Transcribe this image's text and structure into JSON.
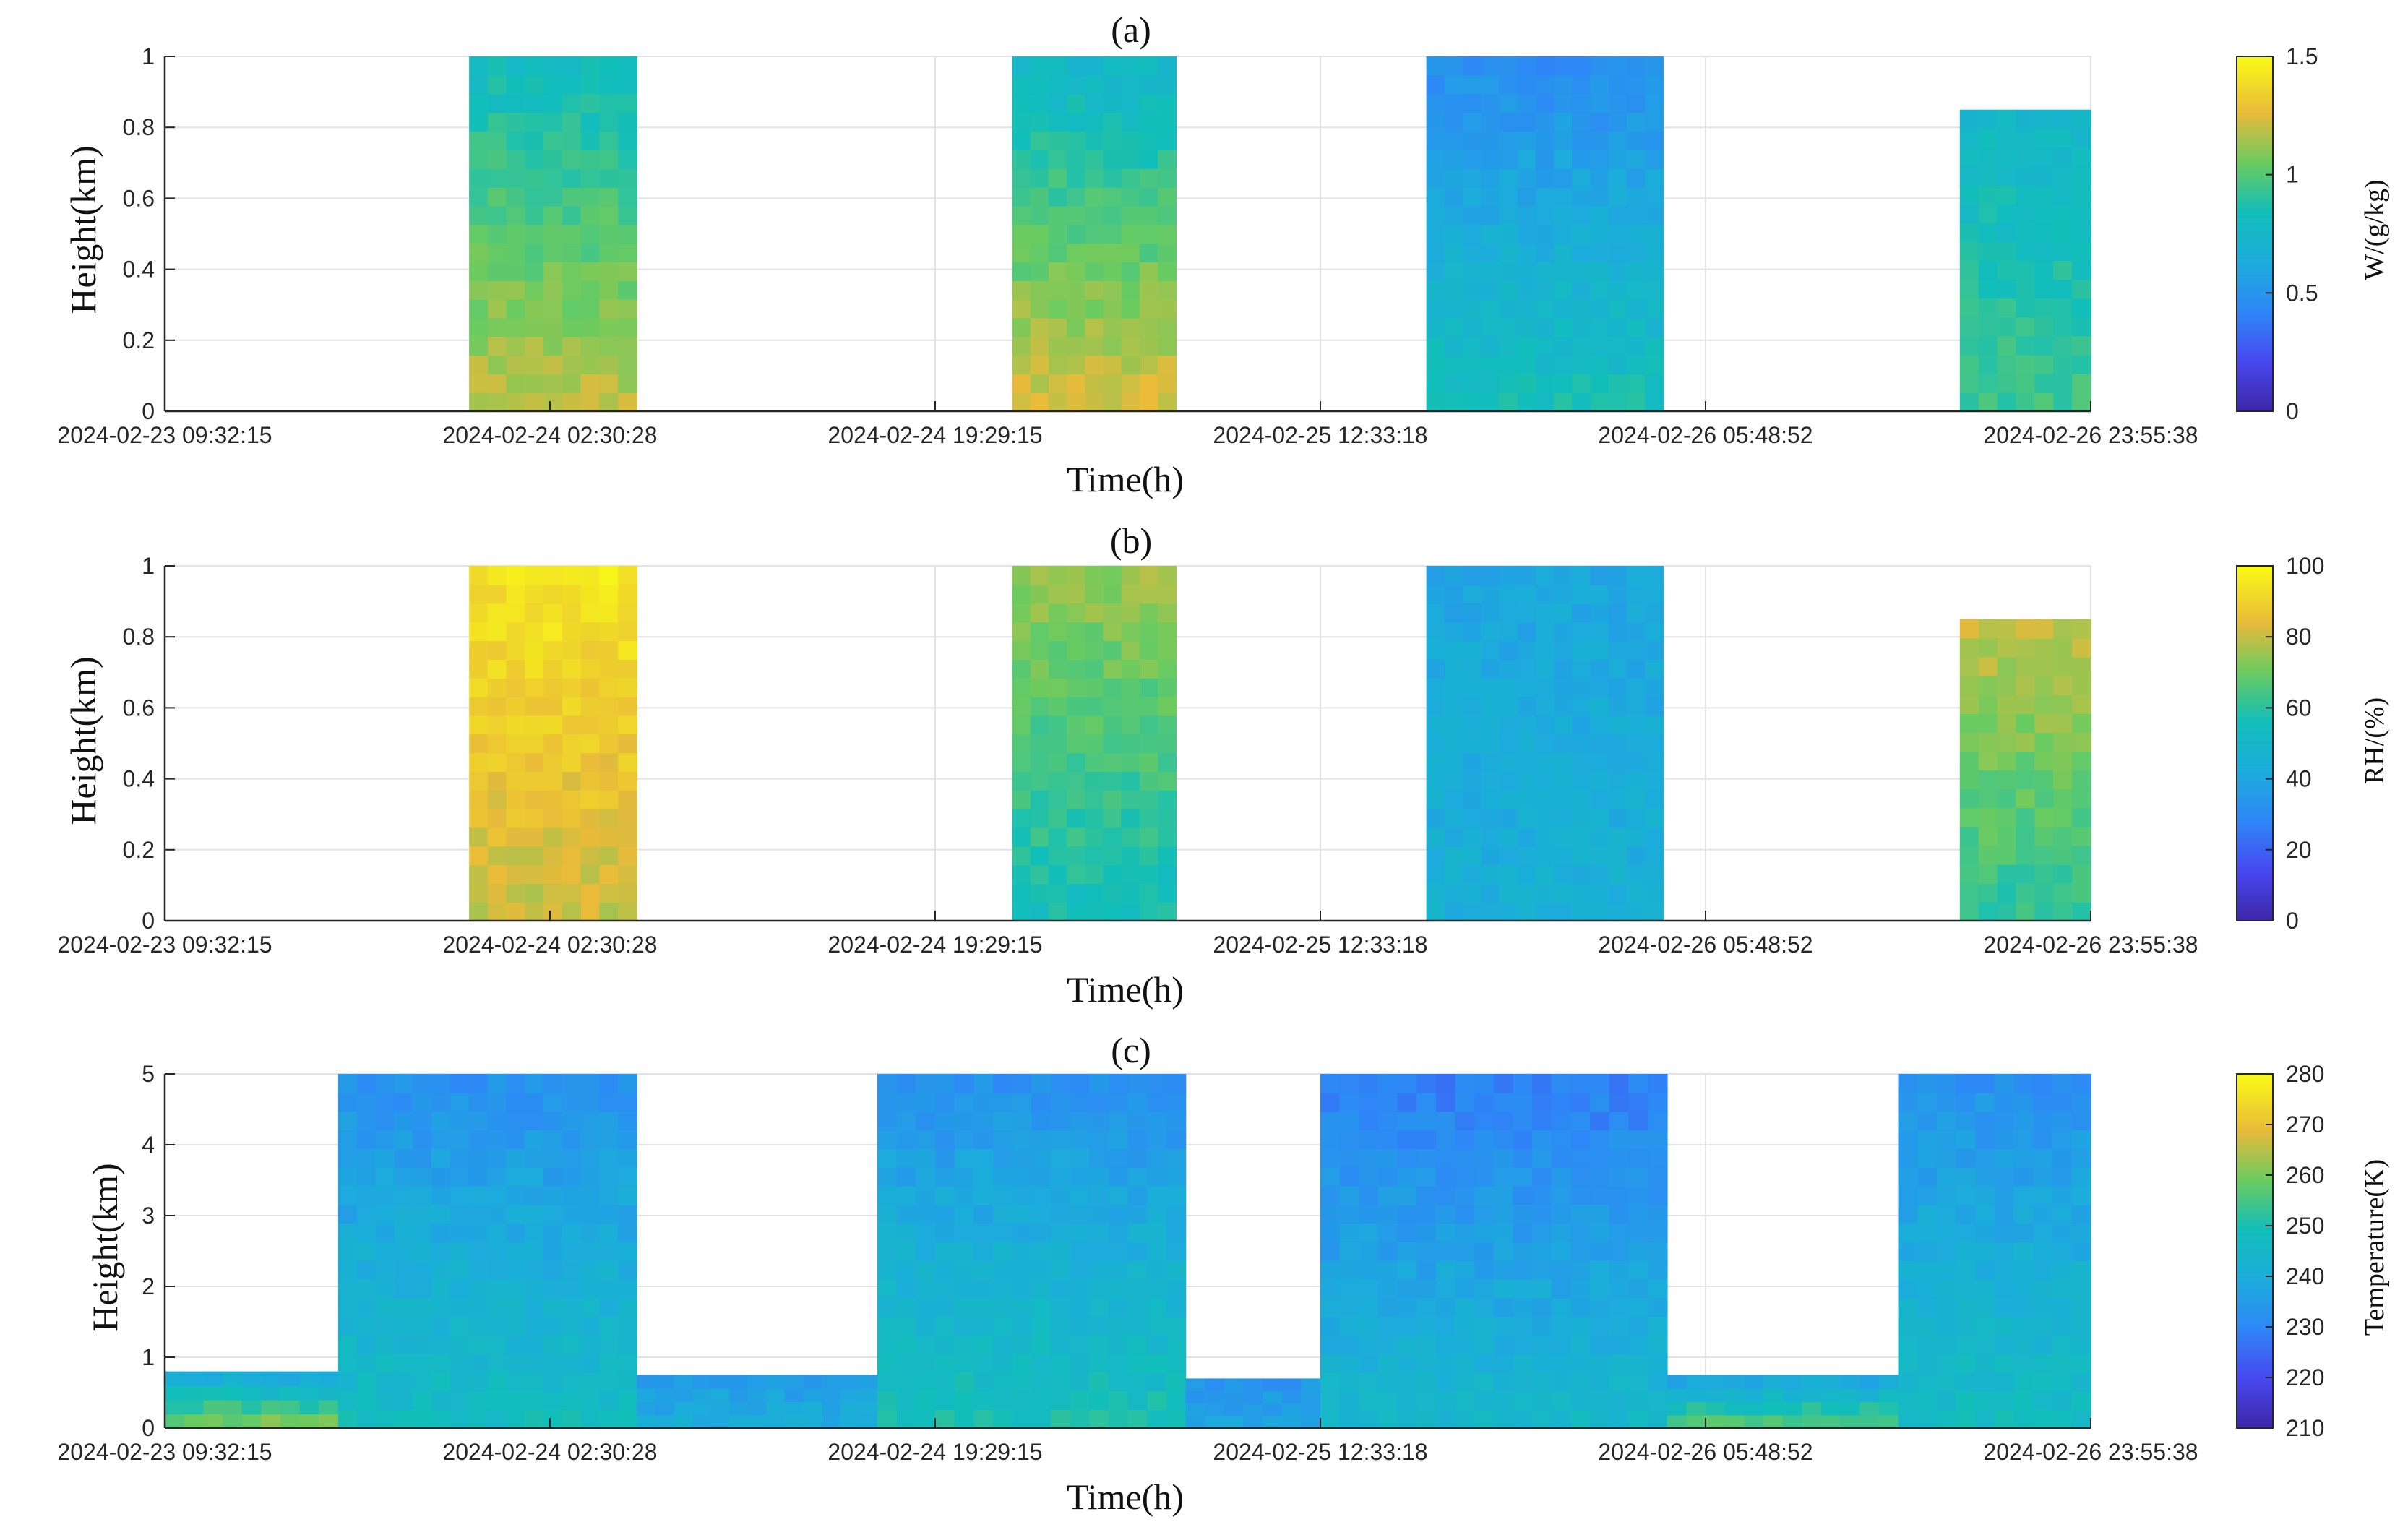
{
  "chart_data": [
    {
      "type": "heatmap",
      "title": "(a)",
      "xlabel": "Time(h)",
      "ylabel": "Height(km)",
      "ylim": [
        0,
        1
      ],
      "yticks": [
        "0",
        "0.2",
        "0.4",
        "0.6",
        "0.8",
        "1"
      ],
      "xticks": [
        "2024-02-23 09:32:15",
        "2024-02-24 02:30:28",
        "2024-02-24 19:29:15",
        "2024-02-25 12:33:18",
        "2024-02-26 05:48:52",
        "2024-02-26 23:55:38"
      ],
      "colorbar": {
        "label": "W/(g/kg)",
        "ticks": [
          "0",
          "0.5",
          "1",
          "1.5"
        ],
        "range": [
          0,
          1.5
        ]
      },
      "grid": true,
      "data_blocks": [
        {
          "x_start": 0.158,
          "x_end": 0.245,
          "top": 1.0,
          "low_value": 1.2,
          "high_value": 0.8
        },
        {
          "x_start": 0.44,
          "x_end": 0.525,
          "top": 1.0,
          "low_value": 1.25,
          "high_value": 0.75
        },
        {
          "x_start": 0.655,
          "x_end": 0.778,
          "top": 1.0,
          "low_value": 0.85,
          "high_value": 0.45
        },
        {
          "x_start": 0.932,
          "x_end": 1.0,
          "top": 0.85,
          "low_value": 0.95,
          "high_value": 0.75
        }
      ]
    },
    {
      "type": "heatmap",
      "title": "(b)",
      "xlabel": "Time(h)",
      "ylabel": "Height(km)",
      "ylim": [
        0,
        1
      ],
      "yticks": [
        "0",
        "0.2",
        "0.4",
        "0.6",
        "0.8",
        "1"
      ],
      "xticks": [
        "2024-02-23 09:32:15",
        "2024-02-24 02:30:28",
        "2024-02-24 19:29:15",
        "2024-02-25 12:33:18",
        "2024-02-26 05:48:52",
        "2024-02-26 23:55:38"
      ],
      "colorbar": {
        "label": "RH/(%)",
        "ticks": [
          "0",
          "20",
          "40",
          "60",
          "80",
          "100"
        ],
        "range": [
          0,
          100
        ]
      },
      "grid": true,
      "data_blocks": [
        {
          "x_start": 0.158,
          "x_end": 0.245,
          "top": 1.0,
          "low_value": 80,
          "high_value": 95
        },
        {
          "x_start": 0.44,
          "x_end": 0.525,
          "top": 1.0,
          "low_value": 55,
          "high_value": 75
        },
        {
          "x_start": 0.655,
          "x_end": 0.778,
          "top": 1.0,
          "low_value": 45,
          "high_value": 40
        },
        {
          "x_start": 0.932,
          "x_end": 1.0,
          "top": 0.85,
          "low_value": 60,
          "high_value": 80
        }
      ]
    },
    {
      "type": "heatmap",
      "title": "(c)",
      "xlabel": "Time(h)",
      "ylabel": "Height(km)",
      "ylim": [
        0,
        5
      ],
      "yticks": [
        "0",
        "1",
        "2",
        "3",
        "4",
        "5"
      ],
      "xticks": [
        "2024-02-23 09:32:15",
        "2024-02-24 02:30:28",
        "2024-02-24 19:29:15",
        "2024-02-25 12:33:18",
        "2024-02-26 05:48:52",
        "2024-02-26 23:55:38"
      ],
      "colorbar": {
        "label": "Temperature(K)",
        "ticks": [
          "210",
          "220",
          "230",
          "240",
          "250",
          "260",
          "270",
          "280"
        ],
        "range": [
          210,
          280
        ]
      },
      "grid": true,
      "data_blocks": [
        {
          "x_start": 0.0,
          "x_end": 0.09,
          "top": 0.8,
          "low_value": 262,
          "high_value": 238
        },
        {
          "x_start": 0.09,
          "x_end": 0.245,
          "top": 5.0,
          "low_value": 248,
          "high_value": 232
        },
        {
          "x_start": 0.245,
          "x_end": 0.37,
          "top": 0.75,
          "low_value": 240,
          "high_value": 235
        },
        {
          "x_start": 0.37,
          "x_end": 0.53,
          "top": 5.0,
          "low_value": 250,
          "high_value": 232
        },
        {
          "x_start": 0.53,
          "x_end": 0.6,
          "top": 0.7,
          "low_value": 238,
          "high_value": 233
        },
        {
          "x_start": 0.6,
          "x_end": 0.78,
          "top": 5.0,
          "low_value": 245,
          "high_value": 228
        },
        {
          "x_start": 0.78,
          "x_end": 0.9,
          "top": 0.75,
          "low_value": 258,
          "high_value": 236
        },
        {
          "x_start": 0.9,
          "x_end": 1.0,
          "top": 5.0,
          "low_value": 248,
          "high_value": 232
        }
      ]
    }
  ]
}
